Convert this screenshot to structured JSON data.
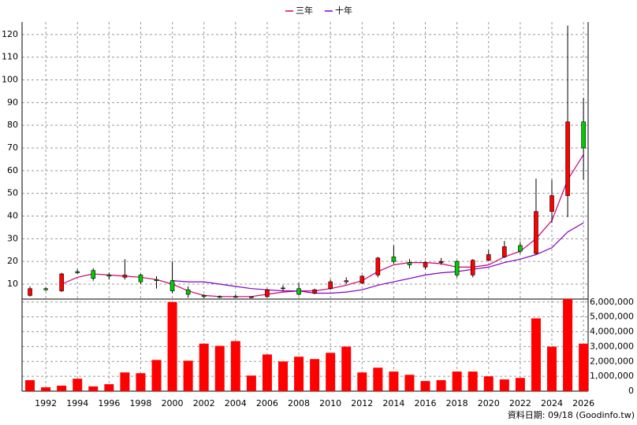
{
  "chart_data": {
    "type": "candlestick",
    "categories": [
      null,
      "1992",
      null,
      "1994",
      null,
      "1996",
      null,
      "1998",
      null,
      "2000",
      null,
      "2002",
      null,
      "2004",
      null,
      "2006",
      null,
      "2008",
      null,
      "2010",
      null,
      "2012",
      null,
      "2014",
      null,
      "2016",
      null,
      "2018",
      null,
      "2020",
      null,
      "2022",
      null,
      "2024",
      null,
      "2026"
    ],
    "open": [
      5,
      8,
      7,
      15.5,
      16,
      14,
      13,
      14,
      12,
      11.5,
      7.5,
      5,
      4.5,
      4.5,
      4.2,
      4.5,
      8,
      8,
      6,
      8,
      11,
      10.5,
      14,
      22,
      19.5,
      17.5,
      19.5,
      20,
      14,
      20.5,
      22,
      27,
      23.5,
      42,
      49,
      81.5
    ],
    "high": [
      9,
      8.5,
      15,
      16.5,
      17,
      15,
      21,
      14.5,
      13.5,
      20,
      9,
      5.5,
      5,
      5.5,
      4.5,
      8,
      9.5,
      10.5,
      8,
      12,
      13,
      14,
      22,
      27,
      21,
      20,
      21.5,
      20.5,
      21,
      25,
      29,
      28.5,
      56.5,
      56,
      124,
      92
    ],
    "low": [
      4.5,
      7,
      6.5,
      14.5,
      11.5,
      12,
      12,
      10,
      8,
      6,
      4,
      3.8,
      3.8,
      4,
      3.8,
      4,
      7,
      5,
      5.5,
      7.5,
      10,
      10,
      13,
      19,
      17,
      16.5,
      18.5,
      13,
      13,
      20,
      21.5,
      23.5,
      23,
      37,
      39.5,
      56
    ],
    "close": [
      8,
      7.5,
      14.5,
      15,
      12.5,
      13.5,
      14,
      11,
      11.5,
      7,
      5.5,
      4.5,
      4.2,
      4.3,
      4.4,
      7.5,
      8.3,
      5.5,
      7.5,
      11,
      11.5,
      13.5,
      21.5,
      20,
      18.5,
      19.5,
      20,
      14,
      20.5,
      23,
      26.5,
      24.5,
      42,
      49,
      81.5,
      70
    ],
    "up_color": "#ff0000",
    "down_color": "#00cc00",
    "series": [
      {
        "name": "三年",
        "color": "#d0006f",
        "values": [
          null,
          null,
          10,
          13,
          14.5,
          14,
          13.5,
          13,
          12,
          10,
          7,
          5,
          4.5,
          4.5,
          4.5,
          5.5,
          6.5,
          7,
          7,
          8,
          9.5,
          11.5,
          15.5,
          18.5,
          19.5,
          19.5,
          19,
          17.5,
          17.5,
          18.5,
          22,
          24.5,
          30,
          38,
          56,
          67
        ]
      },
      {
        "name": "十年",
        "color": "#8000c0",
        "values": [
          null,
          null,
          null,
          null,
          null,
          null,
          null,
          null,
          null,
          11.5,
          11,
          11,
          10,
          9,
          8,
          7.5,
          7,
          7,
          6,
          6,
          6.5,
          7.5,
          9.5,
          11,
          12.5,
          14,
          15,
          15.5,
          16.5,
          17.5,
          19.5,
          21,
          23,
          26,
          33,
          37
        ]
      }
    ],
    "ylim": [
      3.4,
      125.5
    ],
    "yticks": [
      10,
      20,
      30,
      40,
      50,
      60,
      70,
      80,
      90,
      100,
      110,
      120
    ],
    "grid": true,
    "volume": {
      "type": "bar",
      "color": "#ff0000",
      "values": [
        740000,
        260000,
        370000,
        840000,
        320000,
        470000,
        1260000,
        1210000,
        2100000,
        6000000,
        2050000,
        3200000,
        3050000,
        3370000,
        1050000,
        2470000,
        2000000,
        2320000,
        2160000,
        2580000,
        3000000,
        1260000,
        1580000,
        1320000,
        1100000,
        680000,
        740000,
        1320000,
        1320000,
        1000000,
        790000,
        890000,
        4900000,
        3000000,
        6200000,
        3200000
      ],
      "y2lim": [
        0,
        6200000
      ],
      "y2ticks": [
        0,
        {
          "value": 1000000,
          "label": "1,000,000"
        },
        {
          "value": 2000000,
          "label": "2,000,000"
        },
        {
          "value": 3000000,
          "label": "3,000,000"
        },
        {
          "value": 4000000,
          "label": "4,000,000"
        },
        {
          "value": 5000000,
          "label": "5,000,000"
        },
        {
          "value": 6000000,
          "label": "6,000,000"
        }
      ]
    },
    "footer": "資料日期: 09/18 (Goodinfo.tw)"
  }
}
